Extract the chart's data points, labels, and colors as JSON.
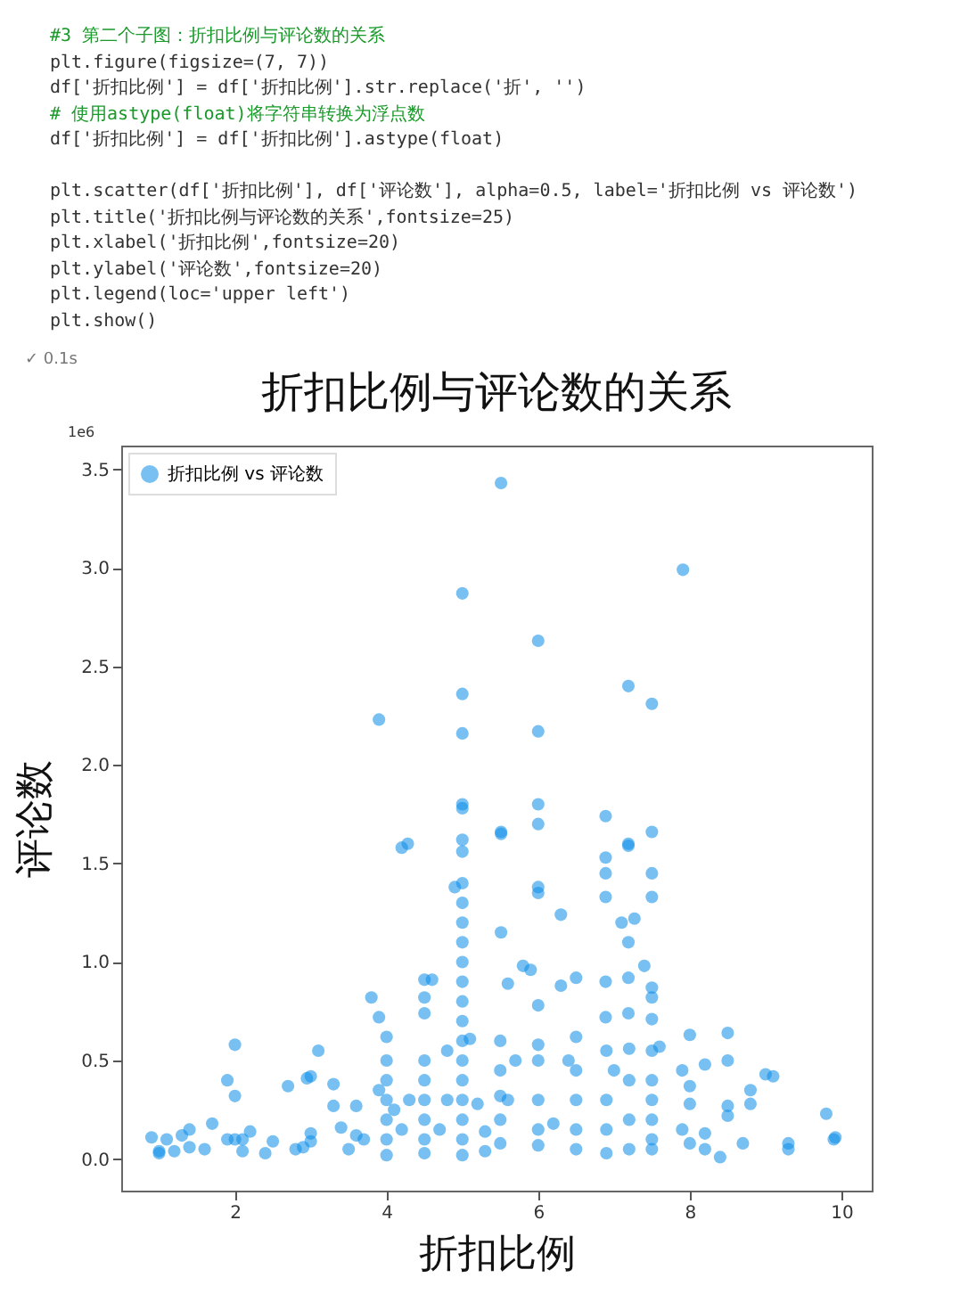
{
  "chart_data": {
    "type": "scatter",
    "title": "折扣比例与评论数的关系",
    "xlabel": "折扣比例",
    "ylabel": "评论数",
    "annotations": [
      "#3 第二个子图：折扣比例与评论数的关系",
      "plt.figure(figsize=(7, 7))",
      "df['折扣比例'] = df['折扣比例'].str.replace('折', '')",
      "# 使用astype(float)将字符串转换为浮点数",
      "df['折扣比例'] = df['折扣比例'].astype(float)",
      "plt.scatter(df['折扣比例'], df['评论数'], alpha=0.5, label='折扣比例 vs 评论数')",
      "plt.title('折扣比例与评论数的关系',fontsize=25)",
      "plt.xlabel('折扣比例',fontsize=20)",
      "plt.ylabel('评论数',fontsize=20)",
      "plt.legend(loc='upper left')",
      "plt.show()",
      "✓ 0.1s",
      "1e6"
    ],
    "x": [
      5.51,
      5.0,
      7.91,
      6.0,
      7.19,
      7.5,
      3.9,
      5.0,
      5.0,
      6.0,
      5.0,
      5.0,
      6.0,
      6.0,
      6.89,
      5.51,
      7.5,
      7.19,
      4.28,
      5.0,
      4.2,
      5.0,
      5.0,
      4.9,
      5.0,
      5.0,
      5.0,
      5.0,
      5.0,
      5.0,
      5.0,
      5.0,
      5.0,
      5.0,
      5.0,
      5.0,
      5.0,
      5.0,
      5.51,
      5.51,
      6.0,
      6.0,
      6.3,
      6.89,
      6.89,
      6.89,
      7.19,
      7.1,
      7.27,
      7.19,
      7.5,
      7.5,
      7.4,
      7.19,
      7.5,
      7.5,
      7.5,
      7.19,
      6.89,
      6.89,
      5.8,
      5.9,
      6.0,
      6.3,
      6.5,
      5.6,
      4.5,
      4.6,
      4.5,
      4.5,
      3.8,
      3.9,
      4.0,
      4.0,
      4.0,
      4.0,
      4.0,
      4.0,
      4.0,
      4.1,
      4.2,
      4.3,
      3.9,
      4.5,
      4.5,
      4.5,
      4.5,
      4.5,
      4.5,
      4.8,
      4.8,
      4.7,
      8.0,
      8.5,
      8.5,
      8.5,
      8.5,
      8.2,
      7.9,
      8.0,
      8.0,
      7.9,
      8.0,
      8.2,
      8.2,
      8.4,
      8.7,
      8.8,
      8.8,
      9.0,
      9.1,
      9.3,
      9.3,
      9.8,
      9.9,
      9.92,
      7.5,
      7.5,
      7.5,
      7.5,
      7.5,
      7.5,
      7.6,
      7.2,
      7.2,
      7.2,
      7.2,
      7.0,
      6.9,
      6.9,
      6.9,
      6.9,
      6.5,
      6.5,
      6.5,
      6.5,
      6.5,
      6.4,
      6.2,
      6.0,
      6.0,
      6.0,
      6.0,
      6.0,
      5.7,
      5.5,
      5.5,
      5.5,
      5.5,
      5.5,
      5.3,
      5.3,
      5.2,
      5.1,
      5.6,
      3.1,
      3.0,
      2.95,
      3.3,
      3.3,
      3.4,
      3.6,
      3.6,
      3.7,
      3.5,
      2.7,
      2.8,
      2.9,
      3.0,
      3.0,
      2.5,
      2.4,
      2.2,
      2.1,
      2.1,
      2.0,
      1.9,
      2.0,
      1.9,
      2.0,
      1.7,
      1.6,
      1.4,
      1.3,
      1.4,
      1.1,
      1.0,
      0.9,
      1.2,
      1.0
    ],
    "series": [
      {
        "name": "折扣比例 vs 评论数",
        "color": "#0a8ce8",
        "values": [
          3.43,
          2.87,
          2.99,
          2.63,
          2.4,
          2.31,
          2.23,
          2.36,
          2.16,
          2.17,
          1.8,
          1.78,
          1.8,
          1.7,
          1.74,
          1.66,
          1.66,
          1.6,
          1.6,
          1.62,
          1.58,
          1.56,
          1.4,
          1.38,
          1.3,
          1.2,
          1.1,
          1.0,
          0.9,
          0.8,
          0.7,
          0.6,
          0.5,
          0.4,
          0.3,
          0.2,
          0.1,
          0.02,
          1.65,
          1.15,
          1.35,
          1.38,
          1.24,
          1.53,
          1.45,
          1.33,
          1.59,
          1.2,
          1.22,
          1.1,
          1.45,
          1.33,
          0.98,
          0.92,
          0.87,
          0.82,
          0.71,
          0.74,
          0.9,
          0.72,
          0.98,
          0.96,
          0.78,
          0.88,
          0.92,
          0.89,
          0.91,
          0.91,
          0.74,
          0.82,
          0.82,
          0.72,
          0.62,
          0.5,
          0.4,
          0.3,
          0.2,
          0.1,
          0.02,
          0.25,
          0.15,
          0.3,
          0.35,
          0.5,
          0.4,
          0.3,
          0.2,
          0.1,
          0.03,
          0.55,
          0.3,
          0.15,
          0.63,
          0.64,
          0.5,
          0.27,
          0.22,
          0.48,
          0.45,
          0.37,
          0.28,
          0.15,
          0.08,
          0.13,
          0.05,
          0.01,
          0.08,
          0.35,
          0.28,
          0.43,
          0.42,
          0.08,
          0.05,
          0.23,
          0.1,
          0.11,
          0.55,
          0.4,
          0.3,
          0.2,
          0.1,
          0.05,
          0.57,
          0.56,
          0.4,
          0.2,
          0.05,
          0.45,
          0.55,
          0.3,
          0.15,
          0.03,
          0.62,
          0.45,
          0.3,
          0.15,
          0.05,
          0.5,
          0.18,
          0.58,
          0.5,
          0.3,
          0.15,
          0.07,
          0.5,
          0.6,
          0.45,
          0.32,
          0.2,
          0.08,
          0.14,
          0.04,
          0.28,
          0.61,
          0.3,
          0.55,
          0.42,
          0.41,
          0.38,
          0.27,
          0.16,
          0.27,
          0.12,
          0.1,
          0.05,
          0.37,
          0.05,
          0.06,
          0.13,
          0.09,
          0.09,
          0.03,
          0.14,
          0.1,
          0.04,
          0.58,
          0.4,
          0.32,
          0.1,
          0.1,
          0.18,
          0.05,
          0.15,
          0.12,
          0.06,
          0.1,
          0.04,
          0.11,
          0.04,
          0.03
        ]
      }
    ],
    "xlim": [
      0.5,
      10.4
    ],
    "xticks": [
      2,
      4,
      6,
      8,
      10
    ],
    "ylim": [
      -0.16,
      3.62
    ],
    "yticks": [
      {
        "value": 0,
        "label": "0.0"
      },
      {
        "value": 0.5,
        "label": "0.5"
      },
      {
        "value": 1,
        "label": "1.0"
      },
      {
        "value": 1.5,
        "label": "1.5"
      },
      {
        "value": 2,
        "label": "2.0"
      },
      {
        "value": 2.5,
        "label": "2.5"
      },
      {
        "value": 3,
        "label": "3.0"
      },
      {
        "value": 3.5,
        "label": "3.5"
      }
    ],
    "grid": false,
    "legend": "top left",
    "marker": "circle"
  }
}
